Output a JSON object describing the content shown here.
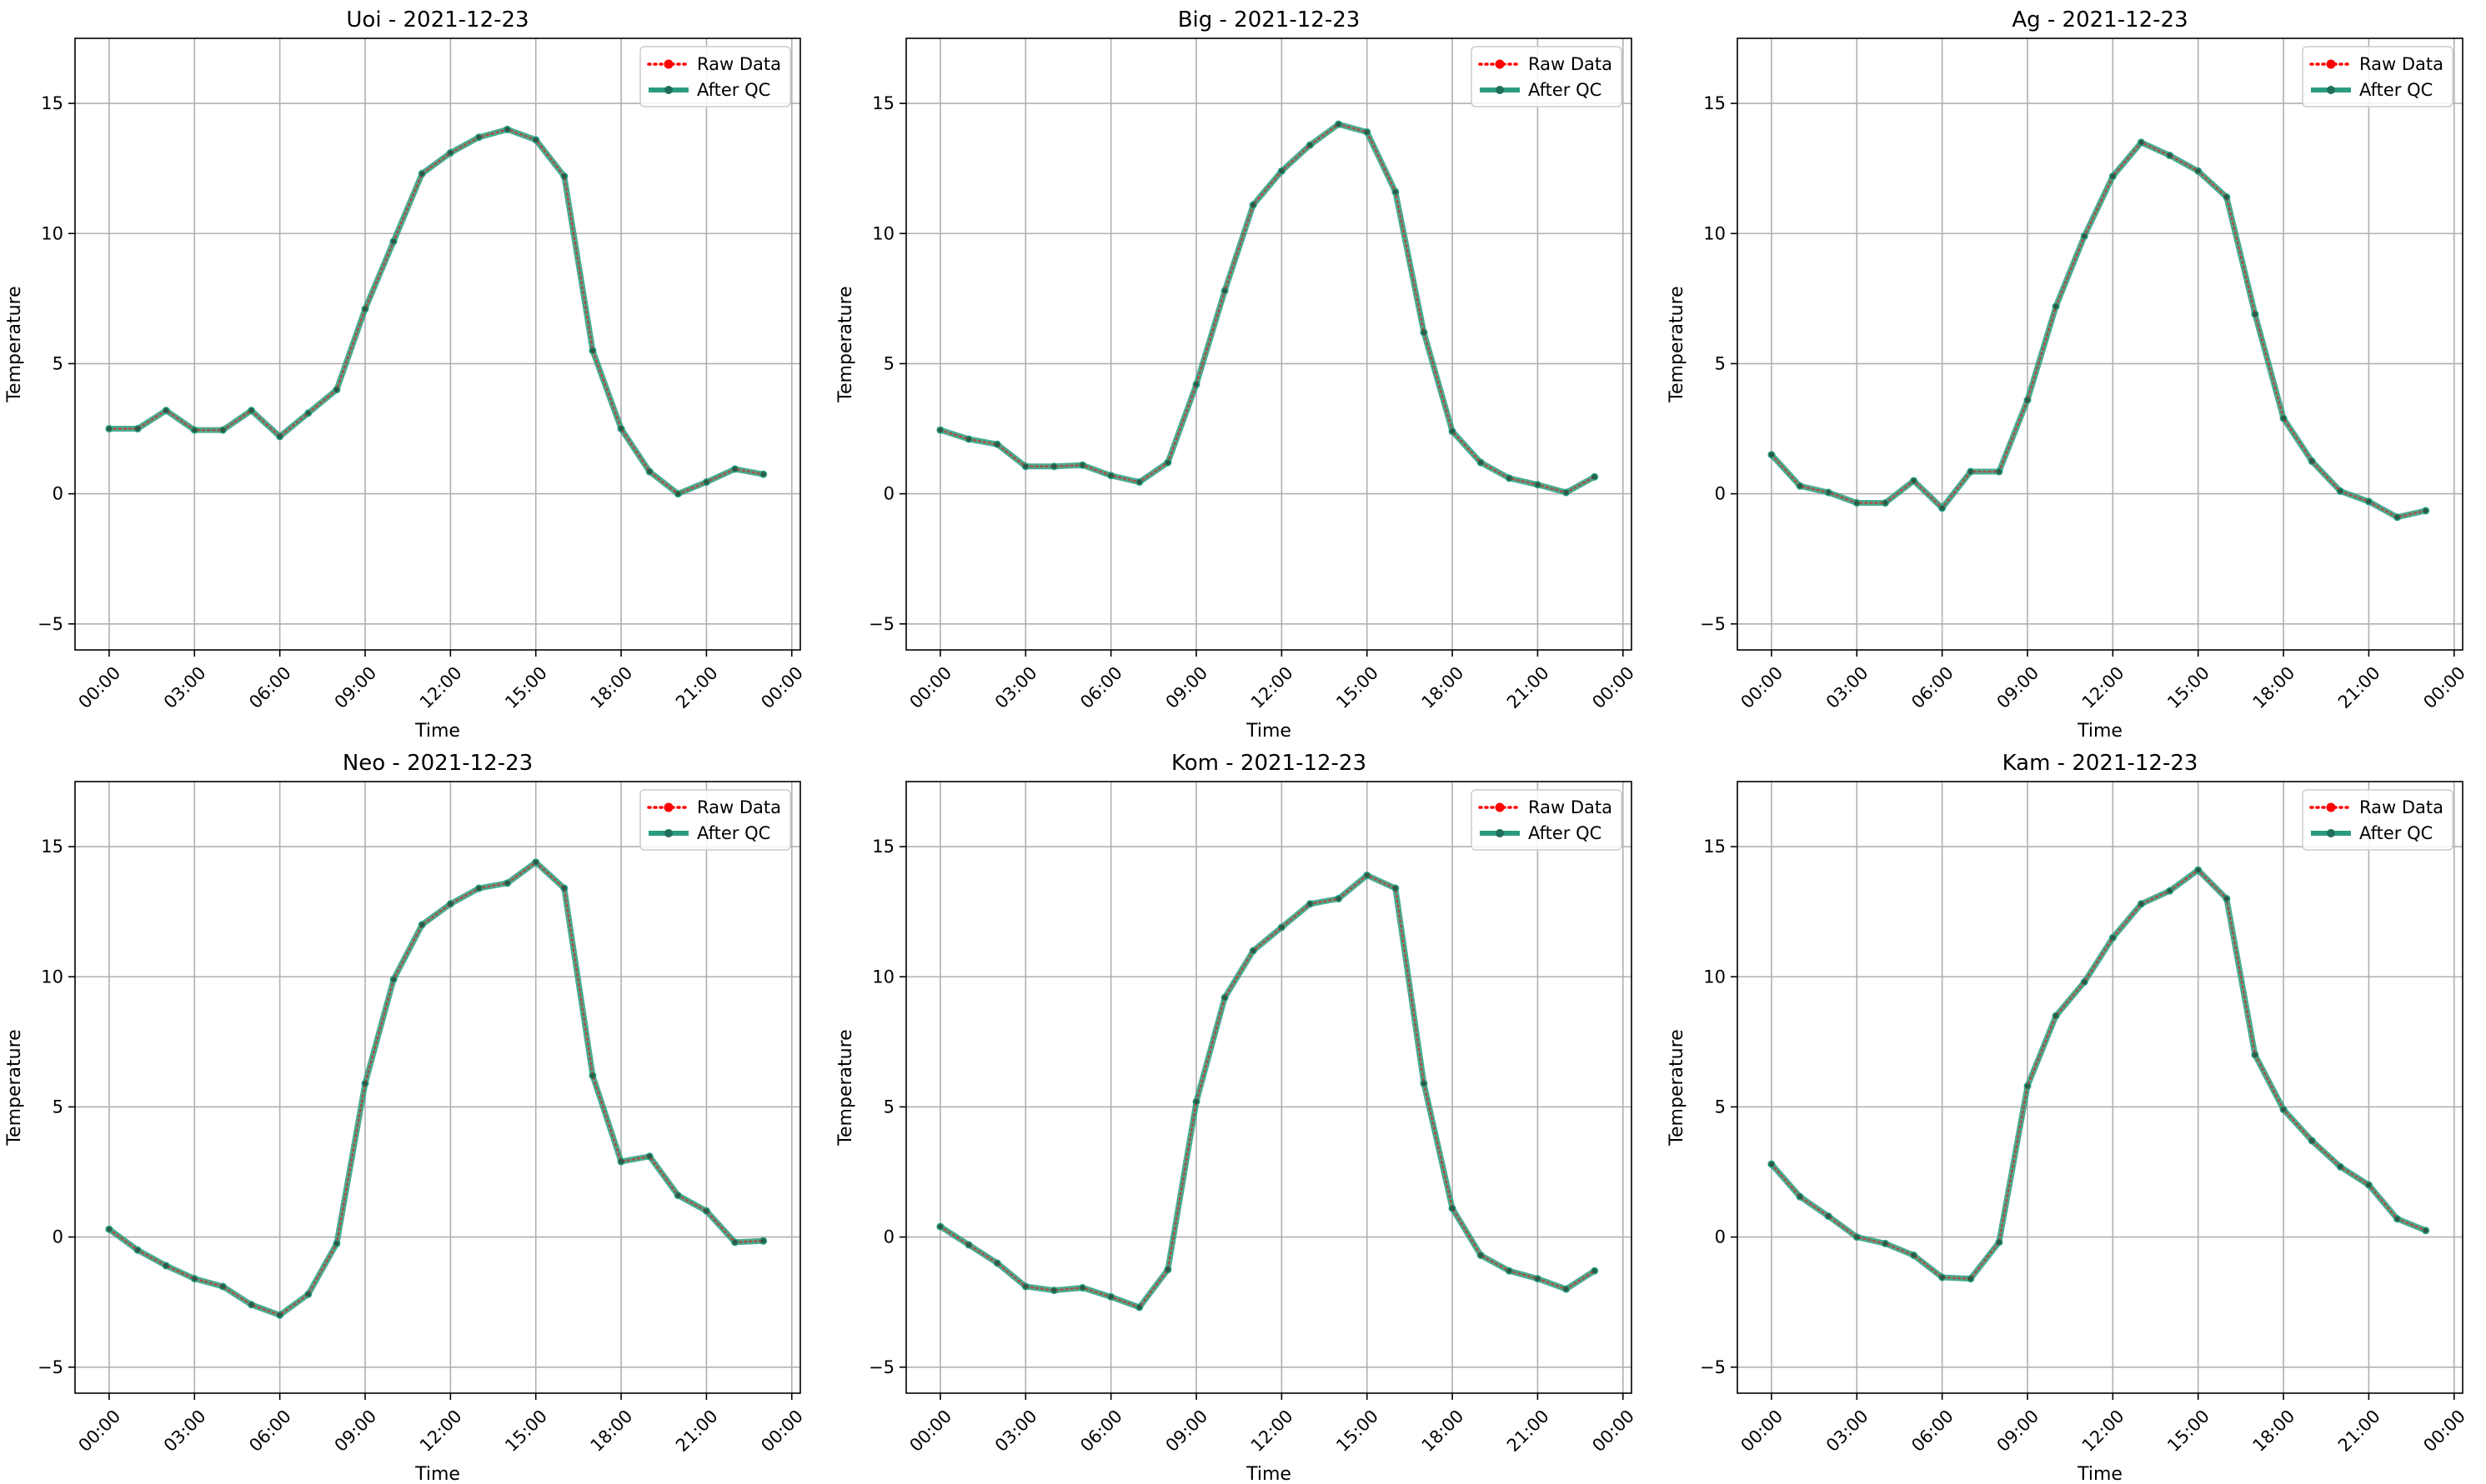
{
  "figure": {
    "xlabel": "Time",
    "ylabel": "Temperature",
    "ylim": [
      -6,
      17.5
    ],
    "yticks": [
      -5,
      0,
      5,
      10,
      15
    ],
    "xticks": [
      "00:00",
      "03:00",
      "06:00",
      "09:00",
      "12:00",
      "15:00",
      "18:00",
      "21:00",
      "00:00"
    ],
    "xlim_hours": [
      -1.2,
      24.3
    ],
    "legend": {
      "placement": "top-right",
      "entries": [
        {
          "label": "Raw Data",
          "color": "#ff0000",
          "style": "dotted-with-markers"
        },
        {
          "label": "After QC",
          "color": "#2a9d7f",
          "style": "solid-with-markers"
        }
      ]
    },
    "grid": true
  },
  "chart_data": [
    {
      "type": "line",
      "title": "Uoi - 2021-12-23",
      "x": [
        "00:00",
        "01:00",
        "02:00",
        "03:00",
        "04:00",
        "05:00",
        "06:00",
        "07:00",
        "08:00",
        "09:00",
        "10:00",
        "11:00",
        "12:00",
        "13:00",
        "14:00",
        "15:00",
        "16:00",
        "17:00",
        "18:00",
        "19:00",
        "20:00",
        "21:00",
        "22:00",
        "23:00"
      ],
      "series": [
        {
          "name": "Raw Data",
          "values": [
            2.5,
            2.5,
            3.2,
            2.45,
            2.45,
            3.2,
            2.2,
            3.1,
            4.0,
            7.1,
            9.7,
            12.3,
            13.1,
            13.7,
            14.0,
            13.6,
            12.2,
            5.5,
            2.5,
            0.85,
            0.0,
            0.45,
            0.95,
            0.75
          ]
        },
        {
          "name": "After QC",
          "values": [
            2.5,
            2.5,
            3.2,
            2.45,
            2.45,
            3.2,
            2.2,
            3.1,
            4.0,
            7.1,
            9.7,
            12.3,
            13.1,
            13.7,
            14.0,
            13.6,
            12.2,
            5.5,
            2.5,
            0.85,
            0.0,
            0.45,
            0.95,
            0.75
          ]
        }
      ],
      "xlabel": "Time",
      "ylabel": "Temperature",
      "ylim": [
        -6,
        17.5
      ]
    },
    {
      "type": "line",
      "title": "Big - 2021-12-23",
      "x": [
        "00:00",
        "01:00",
        "02:00",
        "03:00",
        "04:00",
        "05:00",
        "06:00",
        "07:00",
        "08:00",
        "09:00",
        "10:00",
        "11:00",
        "12:00",
        "13:00",
        "14:00",
        "15:00",
        "16:00",
        "17:00",
        "18:00",
        "19:00",
        "20:00",
        "21:00",
        "22:00",
        "23:00"
      ],
      "series": [
        {
          "name": "Raw Data",
          "values": [
            2.45,
            2.1,
            1.9,
            1.05,
            1.05,
            1.1,
            0.7,
            0.45,
            1.2,
            4.2,
            7.8,
            11.1,
            12.4,
            13.4,
            14.2,
            13.9,
            11.6,
            6.2,
            2.4,
            1.2,
            0.6,
            0.35,
            0.05,
            0.65
          ]
        },
        {
          "name": "After QC",
          "values": [
            2.45,
            2.1,
            1.9,
            1.05,
            1.05,
            1.1,
            0.7,
            0.45,
            1.2,
            4.2,
            7.8,
            11.1,
            12.4,
            13.4,
            14.2,
            13.9,
            11.6,
            6.2,
            2.4,
            1.2,
            0.6,
            0.35,
            0.05,
            0.65
          ]
        }
      ],
      "xlabel": "Time",
      "ylabel": "Temperature",
      "ylim": [
        -6,
        17.5
      ]
    },
    {
      "type": "line",
      "title": "Ag - 2021-12-23",
      "x": [
        "00:00",
        "01:00",
        "02:00",
        "03:00",
        "04:00",
        "05:00",
        "06:00",
        "07:00",
        "08:00",
        "09:00",
        "10:00",
        "11:00",
        "12:00",
        "13:00",
        "14:00",
        "15:00",
        "16:00",
        "17:00",
        "18:00",
        "19:00",
        "20:00",
        "21:00",
        "22:00",
        "23:00"
      ],
      "series": [
        {
          "name": "Raw Data",
          "values": [
            1.5,
            0.3,
            0.05,
            -0.35,
            -0.35,
            0.5,
            -0.55,
            0.85,
            0.85,
            3.6,
            7.2,
            9.9,
            12.2,
            13.5,
            13.0,
            12.4,
            11.4,
            6.9,
            2.9,
            1.25,
            0.1,
            -0.3,
            -0.9,
            -0.65
          ]
        },
        {
          "name": "After QC",
          "values": [
            1.5,
            0.3,
            0.05,
            -0.35,
            -0.35,
            0.5,
            -0.55,
            0.85,
            0.85,
            3.6,
            7.2,
            9.9,
            12.2,
            13.5,
            13.0,
            12.4,
            11.4,
            6.9,
            2.9,
            1.25,
            0.1,
            -0.3,
            -0.9,
            -0.65
          ]
        }
      ],
      "xlabel": "Time",
      "ylabel": "Temperature",
      "ylim": [
        -6,
        17.5
      ]
    },
    {
      "type": "line",
      "title": "Neo - 2021-12-23",
      "x": [
        "00:00",
        "01:00",
        "02:00",
        "03:00",
        "04:00",
        "05:00",
        "06:00",
        "07:00",
        "08:00",
        "09:00",
        "10:00",
        "11:00",
        "12:00",
        "13:00",
        "14:00",
        "15:00",
        "16:00",
        "17:00",
        "18:00",
        "19:00",
        "20:00",
        "21:00",
        "22:00",
        "23:00"
      ],
      "series": [
        {
          "name": "Raw Data",
          "values": [
            0.3,
            -0.5,
            -1.1,
            -1.6,
            -1.9,
            -2.6,
            -3.0,
            -2.2,
            -0.25,
            5.9,
            9.9,
            12.0,
            12.8,
            13.4,
            13.6,
            14.4,
            13.4,
            6.2,
            2.9,
            3.1,
            1.6,
            1.0,
            -0.2,
            -0.15
          ]
        },
        {
          "name": "After QC",
          "values": [
            0.3,
            -0.5,
            -1.1,
            -1.6,
            -1.9,
            -2.6,
            -3.0,
            -2.2,
            -0.25,
            5.9,
            9.9,
            12.0,
            12.8,
            13.4,
            13.6,
            14.4,
            13.4,
            6.2,
            2.9,
            3.1,
            1.6,
            1.0,
            -0.2,
            -0.15
          ]
        }
      ],
      "xlabel": "Time",
      "ylabel": "Temperature",
      "ylim": [
        -6,
        17.5
      ]
    },
    {
      "type": "line",
      "title": "Kom - 2021-12-23",
      "x": [
        "00:00",
        "01:00",
        "02:00",
        "03:00",
        "04:00",
        "05:00",
        "06:00",
        "07:00",
        "08:00",
        "09:00",
        "10:00",
        "11:00",
        "12:00",
        "13:00",
        "14:00",
        "15:00",
        "16:00",
        "17:00",
        "18:00",
        "19:00",
        "20:00",
        "21:00",
        "22:00",
        "23:00"
      ],
      "series": [
        {
          "name": "Raw Data",
          "values": [
            0.4,
            -0.3,
            -1.0,
            -1.9,
            -2.05,
            -1.95,
            -2.3,
            -2.7,
            -1.25,
            5.2,
            9.2,
            11.0,
            11.9,
            12.8,
            13.0,
            13.9,
            13.4,
            5.9,
            1.1,
            -0.7,
            -1.3,
            -1.6,
            -2.0,
            -1.3
          ]
        },
        {
          "name": "After QC",
          "values": [
            0.4,
            -0.3,
            -1.0,
            -1.9,
            -2.05,
            -1.95,
            -2.3,
            -2.7,
            -1.25,
            5.2,
            9.2,
            11.0,
            11.9,
            12.8,
            13.0,
            13.9,
            13.4,
            5.9,
            1.1,
            -0.7,
            -1.3,
            -1.6,
            -2.0,
            -1.3
          ]
        }
      ],
      "xlabel": "Time",
      "ylabel": "Temperature",
      "ylim": [
        -6,
        17.5
      ]
    },
    {
      "type": "line",
      "title": "Kam - 2021-12-23",
      "x": [
        "00:00",
        "01:00",
        "02:00",
        "03:00",
        "04:00",
        "05:00",
        "06:00",
        "07:00",
        "08:00",
        "09:00",
        "10:00",
        "11:00",
        "12:00",
        "13:00",
        "14:00",
        "15:00",
        "16:00",
        "17:00",
        "18:00",
        "19:00",
        "20:00",
        "21:00",
        "22:00",
        "23:00"
      ],
      "series": [
        {
          "name": "Raw Data",
          "values": [
            2.8,
            1.55,
            0.8,
            0.0,
            -0.25,
            -0.7,
            -1.55,
            -1.6,
            -0.2,
            5.8,
            8.5,
            9.8,
            11.5,
            12.8,
            13.3,
            14.1,
            13.0,
            7.0,
            4.9,
            3.7,
            2.7,
            2.0,
            0.7,
            0.25
          ]
        },
        {
          "name": "After QC",
          "values": [
            2.8,
            1.55,
            0.8,
            0.0,
            -0.25,
            -0.7,
            -1.55,
            -1.6,
            -0.2,
            5.8,
            8.5,
            9.8,
            11.5,
            12.8,
            13.3,
            14.1,
            13.0,
            7.0,
            4.9,
            3.7,
            2.7,
            2.0,
            0.7,
            0.25
          ]
        }
      ],
      "xlabel": "Time",
      "ylabel": "Temperature",
      "ylim": [
        -6,
        17.5
      ]
    }
  ]
}
